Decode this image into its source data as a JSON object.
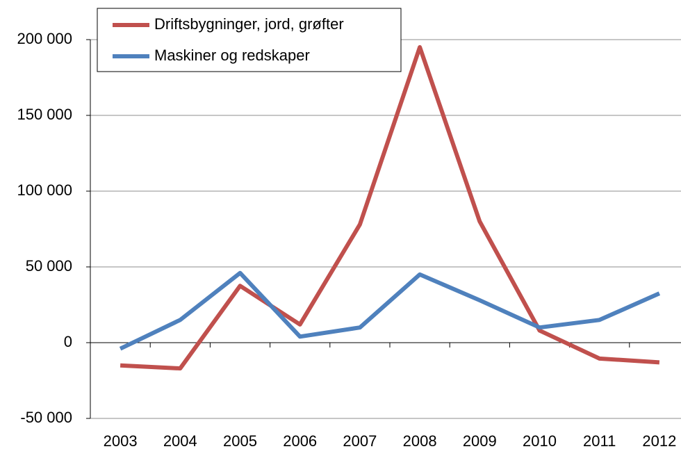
{
  "chart_data": {
    "type": "line",
    "categories": [
      "2003",
      "2004",
      "2005",
      "2006",
      "2007",
      "2008",
      "2009",
      "2010",
      "2011",
      "2012"
    ],
    "series": [
      {
        "name": "Driftsbygninger, jord, grøfter",
        "color": "#c0504d",
        "values": [
          -15000,
          -17000,
          37500,
          12000,
          78000,
          195000,
          80000,
          8000,
          -10500,
          -13000
        ]
      },
      {
        "name": "Maskiner og redskaper",
        "color": "#4f81bd",
        "values": [
          -4000,
          15000,
          46000,
          4000,
          10000,
          45000,
          28000,
          10000,
          15000,
          32500
        ]
      }
    ],
    "ylim": [
      -50000,
      200000
    ],
    "yticks": [
      {
        "value": -50000,
        "label": "-50 000"
      },
      0,
      {
        "value": 50000,
        "label": "50 000"
      },
      {
        "value": 100000,
        "label": "100 000"
      },
      {
        "value": 150000,
        "label": "150 000"
      },
      {
        "value": 200000,
        "label": "200 000"
      }
    ],
    "grid": true,
    "legend": "upper left"
  }
}
